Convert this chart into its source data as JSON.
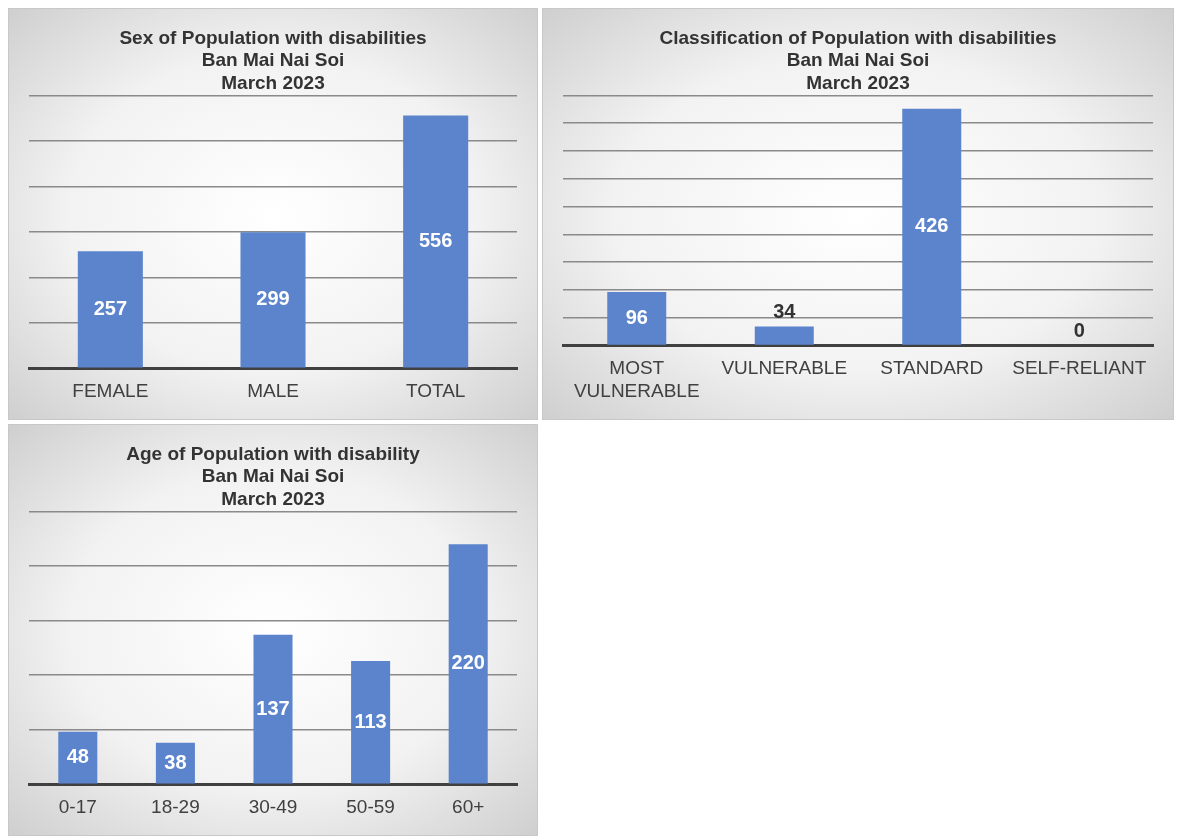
{
  "chart_data": [
    {
      "type": "bar",
      "title": "Sex of Population with disabilities\nBan Mai Nai Soi\nMarch 2023",
      "categories": [
        "FEMALE",
        "MALE",
        "TOTAL"
      ],
      "values": [
        257,
        299,
        556
      ],
      "color": "#5b84cc",
      "grid": "y",
      "tick_labels": "x",
      "data_labels": true
    },
    {
      "type": "bar",
      "title": "Classification of Population with disabilities\nBan Mai Nai Soi\nMarch 2023",
      "categories": [
        "MOST VULNERABLE",
        "VULNERABLE",
        "STANDARD",
        "SELF-RELIANT"
      ],
      "values": [
        96,
        34,
        426,
        0
      ],
      "color": "#5b84cc",
      "grid": "y",
      "tick_labels": "x",
      "data_labels": true
    },
    {
      "type": "bar",
      "title": "Age of Population with disability\nBan Mai Nai Soi\nMarch 2023",
      "categories": [
        "0-17",
        "18-29",
        "30-49",
        "50-59",
        "60+"
      ],
      "values": [
        48,
        38,
        137,
        113,
        220
      ],
      "color": "#5b84cc",
      "grid": "y",
      "tick_labels": "x",
      "data_labels": true
    }
  ]
}
